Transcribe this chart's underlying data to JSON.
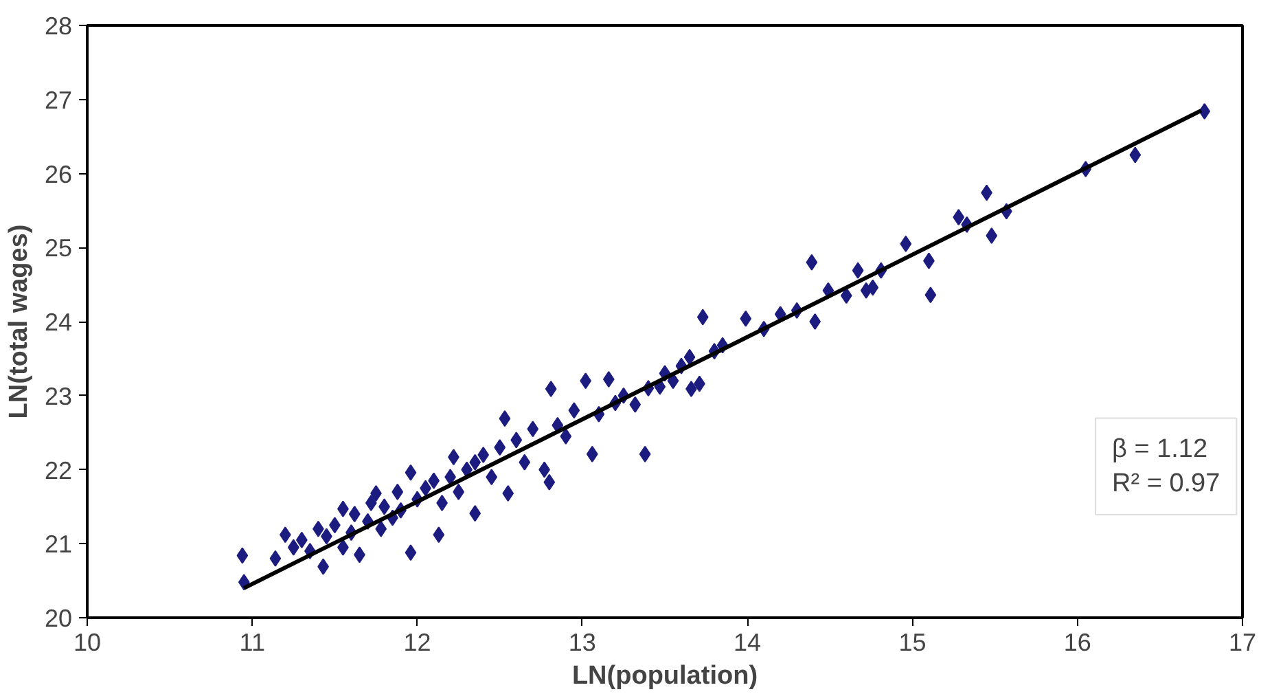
{
  "chart_data": {
    "type": "scatter",
    "xlabel": "LN(population)",
    "ylabel": "LN(total wages)",
    "xlim": [
      10,
      17
    ],
    "ylim": [
      20,
      28
    ],
    "xticks": [
      10,
      11,
      12,
      13,
      14,
      15,
      16,
      17
    ],
    "yticks": [
      20,
      21,
      22,
      23,
      24,
      25,
      26,
      27,
      28
    ],
    "grid": false,
    "annotations": [
      "β = 1.12",
      "R² = 0.97"
    ],
    "series": [
      {
        "marker": "diamond",
        "color": "#1c1c80",
        "x": [
          10.94,
          10.95,
          11.14,
          11.2,
          11.25,
          11.3,
          11.35,
          11.4,
          11.43,
          11.45,
          11.5,
          11.55,
          11.55,
          11.6,
          11.62,
          11.65,
          11.7,
          11.72,
          11.75,
          11.78,
          11.8,
          11.85,
          11.88,
          11.9,
          11.96,
          11.96,
          12.0,
          12.05,
          12.1,
          12.13,
          12.15,
          12.2,
          12.22,
          12.25,
          12.3,
          12.35,
          12.35,
          12.4,
          12.45,
          12.5,
          12.53,
          12.55,
          12.6,
          12.65,
          12.7,
          12.77,
          12.8,
          12.81,
          12.85,
          12.9,
          12.95,
          13.02,
          13.06,
          13.1,
          13.16,
          13.2,
          13.25,
          13.32,
          13.38,
          13.4,
          13.47,
          13.5,
          13.55,
          13.6,
          13.65,
          13.66,
          13.71,
          13.73,
          13.8,
          13.85,
          13.99,
          14.1,
          14.2,
          14.3,
          14.39,
          14.41,
          14.49,
          14.6,
          14.67,
          14.72,
          14.76,
          14.81,
          14.96,
          15.1,
          15.11,
          15.28,
          15.33,
          15.45,
          15.48,
          15.57,
          16.05,
          16.35,
          16.77
        ],
        "values": [
          20.84,
          20.48,
          20.8,
          21.12,
          20.95,
          21.05,
          20.9,
          21.2,
          20.69,
          21.1,
          21.25,
          21.47,
          20.95,
          21.15,
          21.4,
          20.85,
          21.3,
          21.55,
          21.68,
          21.2,
          21.5,
          21.35,
          21.7,
          21.45,
          21.96,
          20.88,
          21.6,
          21.75,
          21.85,
          21.12,
          21.55,
          21.9,
          22.17,
          21.7,
          22.0,
          21.41,
          22.1,
          22.2,
          21.9,
          22.3,
          22.69,
          21.68,
          22.4,
          22.1,
          22.55,
          22.0,
          21.83,
          23.09,
          22.6,
          22.45,
          22.8,
          23.2,
          22.21,
          22.75,
          23.22,
          22.9,
          23.0,
          22.88,
          22.21,
          23.1,
          23.12,
          23.3,
          23.2,
          23.4,
          23.52,
          23.09,
          23.16,
          24.06,
          23.6,
          23.68,
          24.04,
          23.9,
          24.1,
          24.15,
          24.8,
          24.0,
          24.42,
          24.35,
          24.69,
          24.42,
          24.46,
          24.69,
          25.05,
          24.82,
          24.36,
          25.41,
          25.31,
          25.74,
          25.16,
          25.49,
          26.06,
          26.25,
          26.84
        ]
      },
      {
        "type": "line",
        "color": "#000000",
        "x": [
          10.95,
          16.75
        ],
        "values": [
          20.4,
          26.85
        ]
      }
    ]
  }
}
